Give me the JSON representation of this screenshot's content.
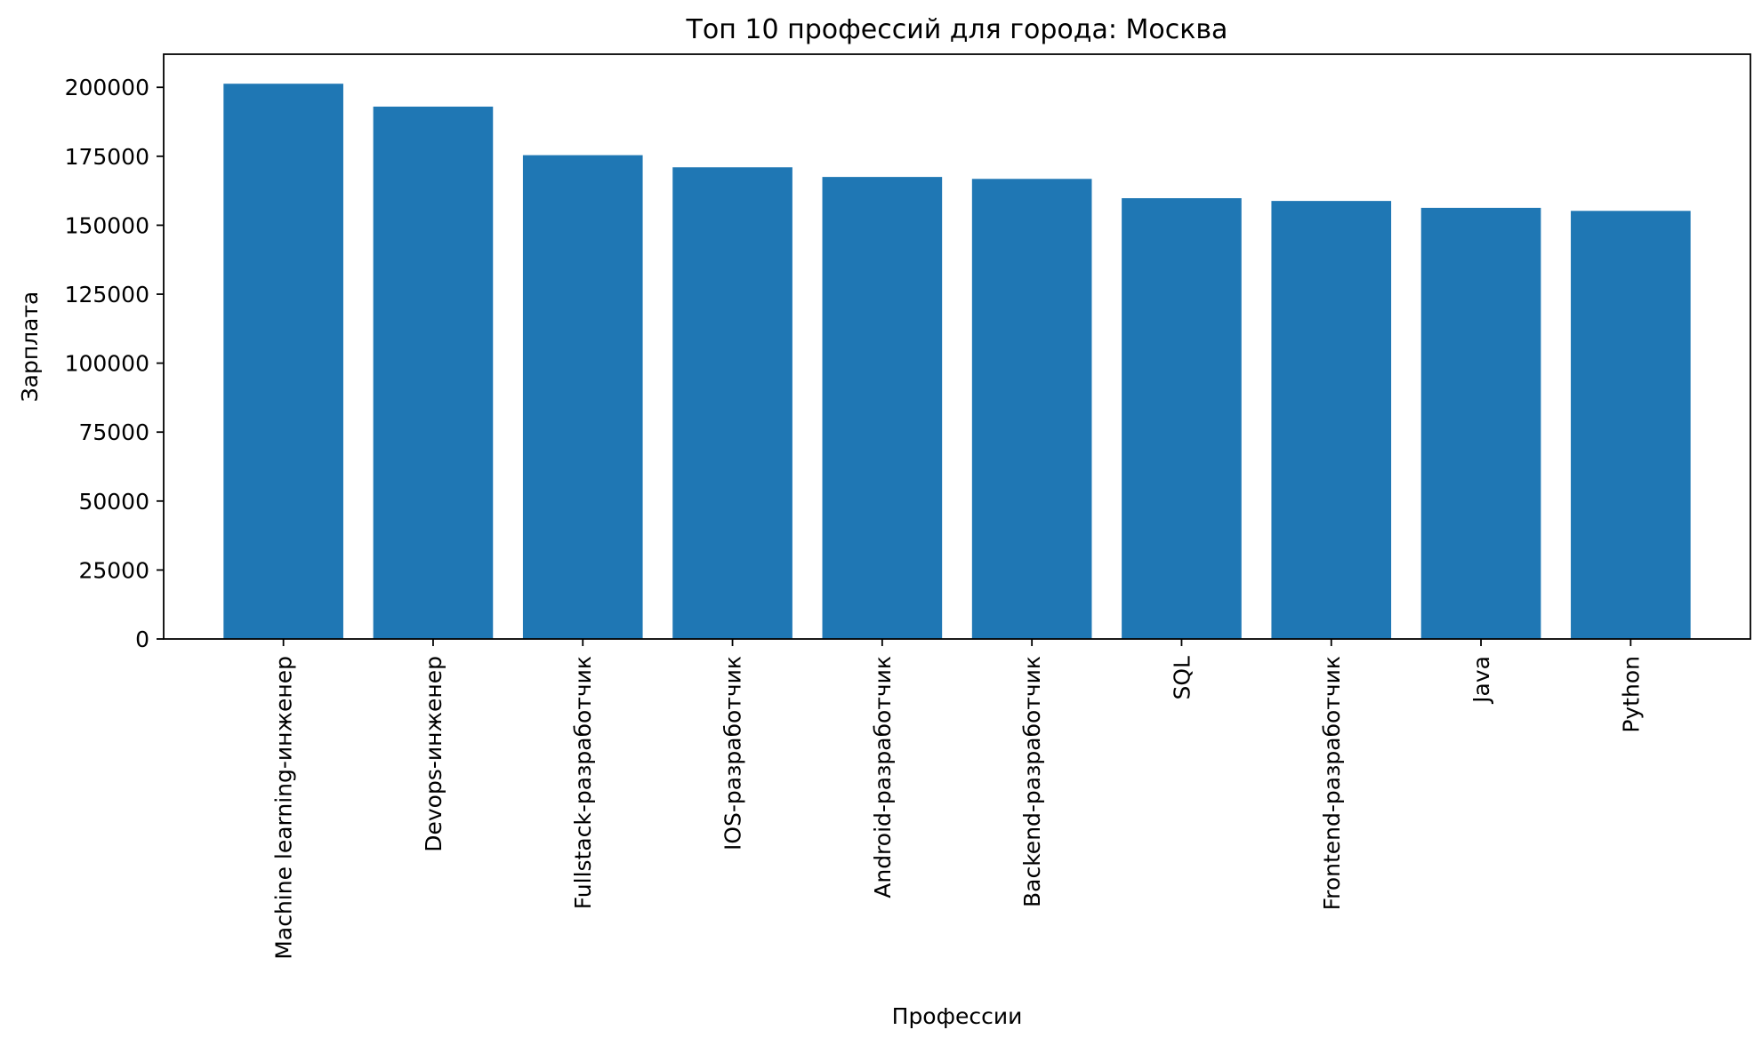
{
  "chart_data": {
    "type": "bar",
    "title": "Топ 10 профессий для города: Москва",
    "xlabel": "Профессии",
    "ylabel": "Зарплата",
    "categories": [
      "Machine learning-инженер",
      "Devops-инженер",
      "Fullstack-разработчик",
      "IOS-разработчик",
      "Android-разработчик",
      "Backend-разработчик",
      "SQL",
      "Frontend-разработчик",
      "Java",
      "Python"
    ],
    "values": [
      201300,
      193000,
      175400,
      171000,
      167500,
      166800,
      159800,
      158800,
      156300,
      155200
    ],
    "ylim": [
      0,
      212000
    ],
    "yticks": [
      0,
      25000,
      50000,
      75000,
      100000,
      125000,
      150000,
      175000,
      200000
    ],
    "color": "#1f77b4",
    "grid": false,
    "legend": false
  }
}
